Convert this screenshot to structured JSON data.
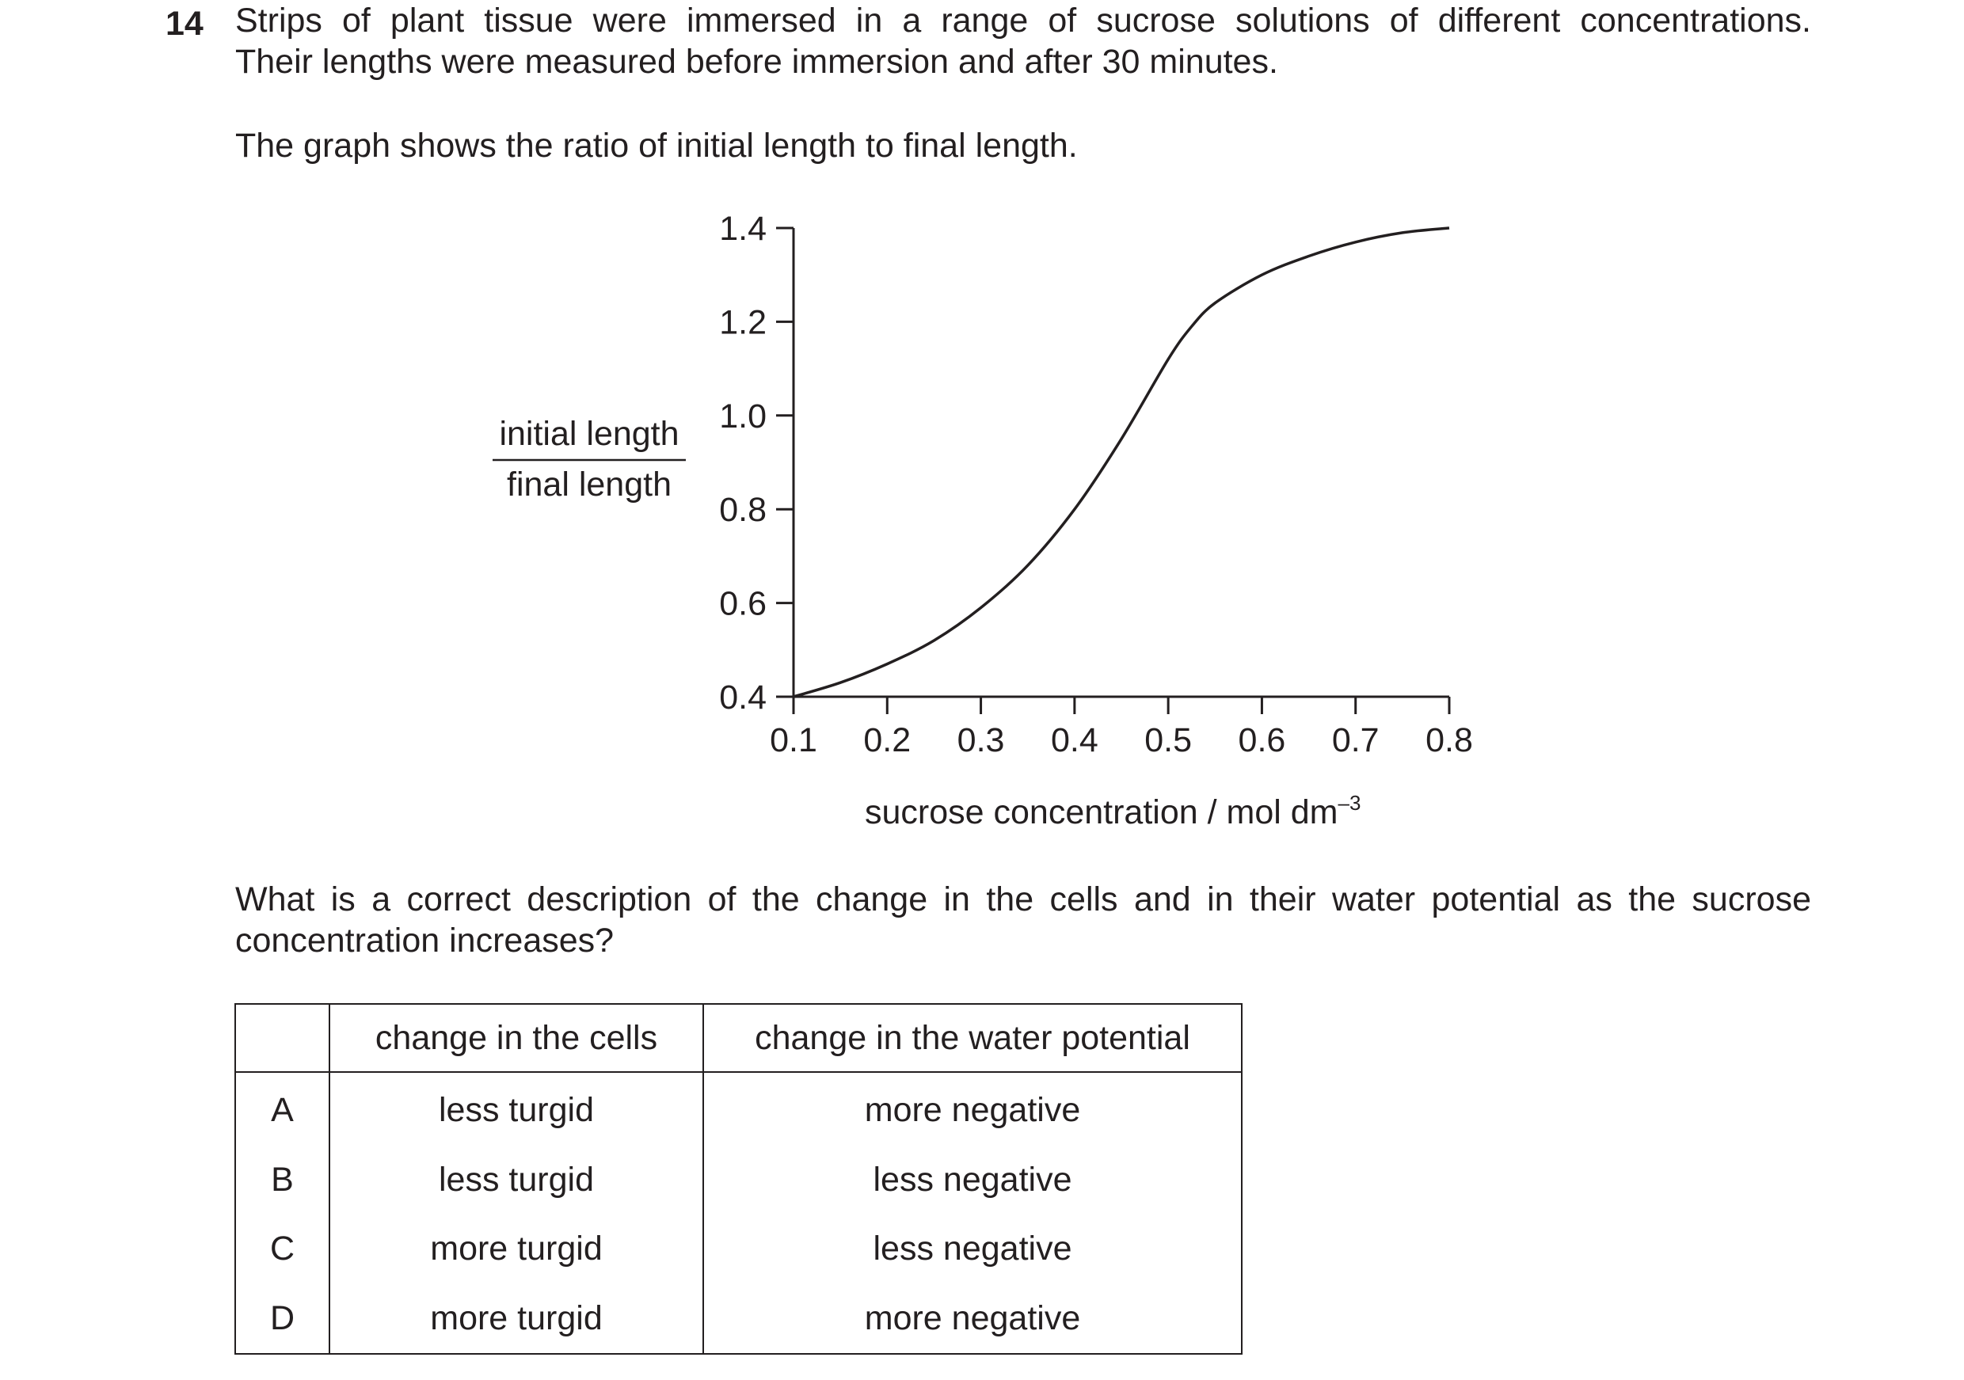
{
  "question": {
    "number": "14",
    "stem_lines": [
      "Strips of plant tissue were immersed in a range of sucrose solutions of different concentrations.",
      "Their lengths were measured before immersion and after 30 minutes."
    ],
    "graph_intro": "The graph shows the ratio of initial length to final length.",
    "prompt_lines": [
      "What is a correct description of the change in the cells and in their water potential as the sucrose",
      "concentration increases?"
    ]
  },
  "chart_data": {
    "type": "line",
    "ylabel_numerator": "initial length",
    "ylabel_denominator": "final length",
    "xlabel_main": "sucrose concentration / mol dm",
    "xlabel_superscript": "–3",
    "x_ticks": [
      0.1,
      0.2,
      0.3,
      0.4,
      0.5,
      0.6,
      0.7,
      0.8
    ],
    "x_tick_labels": [
      "0.1",
      "0.2",
      "0.3",
      "0.4",
      "0.5",
      "0.6",
      "0.7",
      "0.8"
    ],
    "y_ticks": [
      0.4,
      0.6,
      0.8,
      1.0,
      1.2,
      1.4
    ],
    "y_tick_labels": [
      "0.4",
      "0.6",
      "0.8",
      "1.0",
      "1.2",
      "1.4"
    ],
    "xlim": [
      0.1,
      0.8
    ],
    "ylim": [
      0.4,
      1.4
    ],
    "grid": false,
    "series": [
      {
        "x": [
          0.1,
          0.15,
          0.2,
          0.25,
          0.3,
          0.35,
          0.4,
          0.45,
          0.5,
          0.525,
          0.55,
          0.6,
          0.65,
          0.7,
          0.75,
          0.8
        ],
        "y": [
          0.4,
          0.43,
          0.47,
          0.52,
          0.59,
          0.68,
          0.8,
          0.95,
          1.12,
          1.19,
          1.24,
          1.3,
          1.34,
          1.37,
          1.39,
          1.4
        ]
      }
    ]
  },
  "table": {
    "headers": [
      "",
      "change in the cells",
      "change in the water potential"
    ],
    "rows": [
      {
        "letter": "A",
        "cells": "less turgid",
        "water_potential": "more negative"
      },
      {
        "letter": "B",
        "cells": "less turgid",
        "water_potential": "less negative"
      },
      {
        "letter": "C",
        "cells": "more turgid",
        "water_potential": "less negative"
      },
      {
        "letter": "D",
        "cells": "more turgid",
        "water_potential": "more negative"
      }
    ]
  }
}
